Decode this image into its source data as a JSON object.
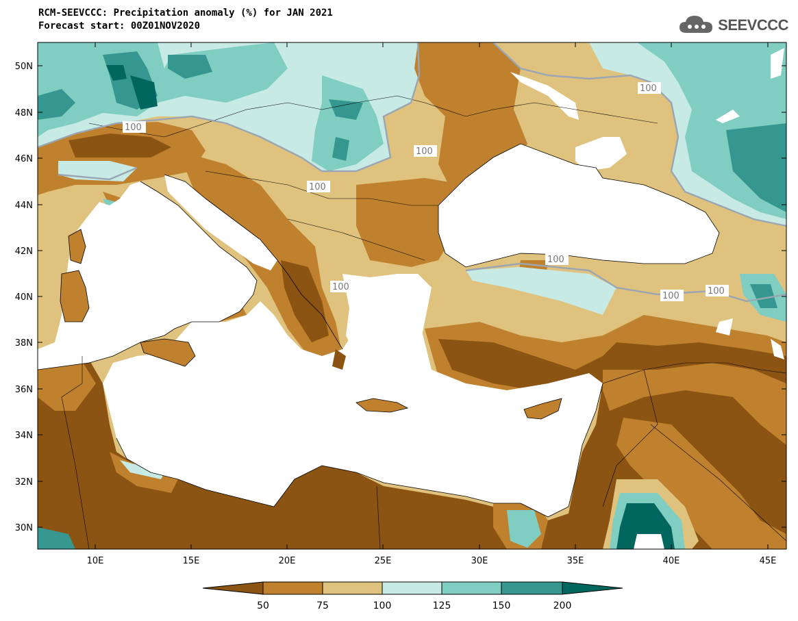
{
  "header": {
    "title_line1": "RCM-SEEVCCC: Precipitation anomaly (%) for JAN 2021",
    "title_line2": "Forecast start: 00Z01NOV2020",
    "logo_text": "SEEVCCC"
  },
  "map": {
    "lat_labels": [
      "50N",
      "48N",
      "46N",
      "44N",
      "42N",
      "40N",
      "38N",
      "36N",
      "34N",
      "32N",
      "30N"
    ],
    "lon_labels": [
      "10E",
      "15E",
      "20E",
      "25E",
      "30E",
      "35E",
      "40E",
      "45E"
    ],
    "contour_labels": [
      "100",
      "100",
      "100",
      "100",
      "100",
      "100",
      "100",
      "100"
    ],
    "colors": {
      "lt50": "#8c5412",
      "50_75": "#bf812d",
      "75_100": "#dfc27d",
      "100_125": "#c7eae5",
      "125_150": "#80cdc1",
      "150_200": "#35978f",
      "gt200": "#01665e",
      "sea": "#ffffff"
    }
  },
  "colorbar": {
    "labels": [
      "50",
      "75",
      "100",
      "125",
      "150",
      "200"
    ],
    "colors": [
      "#8c5412",
      "#bf812d",
      "#dfc27d",
      "#c7eae5",
      "#80cdc1",
      "#35978f",
      "#01665e"
    ]
  }
}
